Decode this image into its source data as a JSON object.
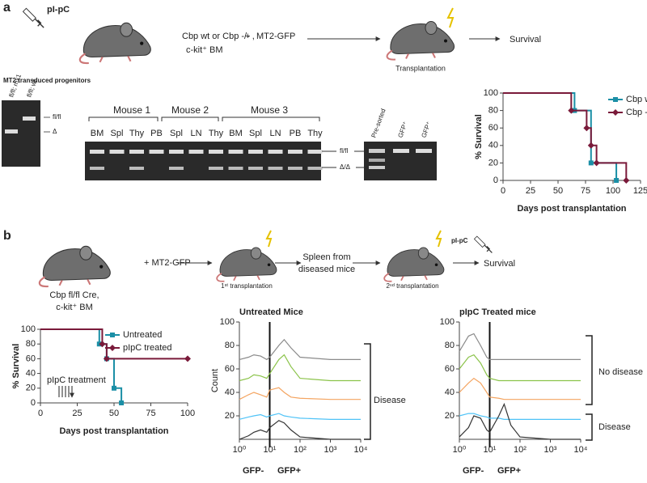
{
  "panel_a": {
    "label": "a",
    "syringe_label": "pI-pC",
    "donor_line1": "Cbp wt or Cbp -/- ,",
    "donor_line2": "c-kit⁺ BM",
    "plus": "+",
    "vector": "MT2-GFP",
    "recipient": "Transplantation",
    "outcome": "Survival",
    "gel_left": {
      "title": "MT2 transduced progenitors",
      "lanes": [
        "fl/fl; mx1",
        "fl/fl; wt"
      ],
      "bands": [
        "fl/fl",
        "Δ"
      ]
    },
    "gel_middle": {
      "groups": [
        "Mouse 1",
        "Mouse 2",
        "Mouse 3"
      ],
      "lanes": [
        "BM",
        "Spl",
        "Thy",
        "PB",
        "Spl",
        "LN",
        "Thy",
        "BM",
        "Spl",
        "LN",
        "PB",
        "Thy"
      ],
      "bands": [
        "fl/fl",
        "Δ/Δ"
      ]
    },
    "gel_right": {
      "lanes": [
        "Pre-sorted",
        "GFP⁺",
        "GFP⁺"
      ]
    }
  },
  "panel_b": {
    "label": "b",
    "donor_line1": "Cbp fl/fl Cre,",
    "donor_line2": "c-kit⁺ BM",
    "vector": "+ MT2-GFP",
    "first": "1ˢᵗ transplantation",
    "intermediate_line1": "Spleen from",
    "intermediate_line2": "diseased mice",
    "second": "2ⁿᵈ transplantation",
    "syringe_label": "pI-pC",
    "outcome": "Survival"
  },
  "chart_data": [
    {
      "type": "line",
      "step": true,
      "xlabel": "Days post transplantation",
      "ylabel": "% Survival",
      "xlim": [
        0,
        125
      ],
      "ylim": [
        0,
        100
      ],
      "xticks": [
        0,
        25,
        50,
        75,
        100,
        125
      ],
      "yticks": [
        0,
        20,
        40,
        60,
        80,
        100
      ],
      "legend": "upper right",
      "series": [
        {
          "name": "Cbp wt",
          "color": "#1b8fa6",
          "marker": "square",
          "x": [
            0,
            65,
            80,
            103
          ],
          "values": [
            100,
            80,
            20,
            0
          ]
        },
        {
          "name": "Cbp -/-",
          "color": "#7a1a3a",
          "marker": "diamond",
          "x": [
            0,
            62,
            76,
            80,
            85,
            112
          ],
          "values": [
            100,
            80,
            60,
            40,
            20,
            0
          ]
        }
      ]
    },
    {
      "type": "line",
      "step": true,
      "xlabel": "Days post transplantation",
      "ylabel": "% Survival",
      "xlim": [
        0,
        100
      ],
      "ylim": [
        0,
        100
      ],
      "xticks": [
        0,
        25,
        50,
        75,
        100
      ],
      "yticks": [
        0,
        20,
        40,
        60,
        80,
        100
      ],
      "legend": "upper right",
      "annotations": [
        "pIpC treatment"
      ],
      "series": [
        {
          "name": "Untreated",
          "color": "#1b8fa6",
          "marker": "square",
          "x": [
            0,
            40,
            45,
            50,
            55
          ],
          "values": [
            100,
            80,
            60,
            20,
            0
          ]
        },
        {
          "name": "pIpC treated",
          "color": "#7a1a3a",
          "marker": "diamond",
          "x": [
            0,
            42,
            45,
            100
          ],
          "values": [
            100,
            80,
            60,
            60
          ]
        }
      ]
    },
    {
      "type": "line",
      "title": "Untreated Mice",
      "ylabel": "Count",
      "xscale": "log",
      "gate": 10,
      "xlim": [
        1,
        10000
      ],
      "ylim": [
        0,
        100
      ],
      "xticks": [
        {
          "value": 1,
          "label": "10⁰"
        },
        {
          "value": 10,
          "label": "10¹"
        },
        {
          "value": 100,
          "label": "10²"
        },
        {
          "value": 1000,
          "label": "10³"
        },
        {
          "value": 10000,
          "label": "10⁴"
        }
      ],
      "yticks": [
        20,
        40,
        60,
        80,
        100
      ],
      "annotations": [
        "GFP-",
        "GFP+",
        "Disease"
      ],
      "x": [
        1,
        2,
        3,
        5,
        8,
        10,
        20,
        30,
        50,
        100,
        1000,
        10000
      ],
      "series": [
        {
          "color": "#8a8a8a",
          "values": [
            68,
            70,
            72,
            71,
            68,
            70,
            80,
            85,
            78,
            70,
            68,
            68
          ]
        },
        {
          "color": "#8bc34a",
          "values": [
            50,
            52,
            55,
            54,
            52,
            56,
            68,
            72,
            62,
            52,
            50,
            50
          ]
        },
        {
          "color": "#f4a460",
          "values": [
            34,
            38,
            40,
            38,
            36,
            42,
            44,
            40,
            36,
            35,
            34,
            34
          ]
        },
        {
          "color": "#4fc3f7",
          "values": [
            17,
            19,
            20,
            21,
            19,
            20,
            22,
            20,
            19,
            18,
            17,
            17
          ]
        },
        {
          "color": "#333333",
          "values": [
            0,
            3,
            6,
            8,
            6,
            10,
            16,
            14,
            8,
            2,
            0,
            0
          ]
        }
      ]
    },
    {
      "type": "line",
      "title": "pIpC Treated mice",
      "xscale": "log",
      "gate": 10,
      "xlim": [
        1,
        10000
      ],
      "ylim": [
        0,
        100
      ],
      "xticks": [
        {
          "value": 1,
          "label": "10⁰"
        },
        {
          "value": 10,
          "label": "10¹"
        },
        {
          "value": 100,
          "label": "10²"
        },
        {
          "value": 1000,
          "label": "10³"
        },
        {
          "value": 10000,
          "label": "10⁴"
        }
      ],
      "yticks": [
        20,
        40,
        60,
        80,
        100
      ],
      "annotations": [
        "GFP-",
        "GFP+",
        "No disease",
        "Disease"
      ],
      "x": [
        1,
        2,
        3,
        5,
        8,
        10,
        20,
        30,
        50,
        100,
        1000,
        10000
      ],
      "series": [
        {
          "color": "#8a8a8a",
          "values": [
            75,
            88,
            90,
            80,
            70,
            68,
            68,
            68,
            68,
            68,
            68,
            68
          ]
        },
        {
          "color": "#8bc34a",
          "values": [
            60,
            70,
            72,
            65,
            55,
            52,
            50,
            50,
            50,
            50,
            50,
            50
          ]
        },
        {
          "color": "#f4a460",
          "values": [
            40,
            48,
            52,
            48,
            40,
            36,
            35,
            34,
            34,
            34,
            34,
            34
          ]
        },
        {
          "color": "#4fc3f7",
          "values": [
            20,
            22,
            22,
            20,
            19,
            18,
            18,
            17,
            17,
            17,
            17,
            17
          ]
        },
        {
          "color": "#333333",
          "values": [
            2,
            10,
            20,
            18,
            8,
            6,
            20,
            30,
            12,
            2,
            0,
            0
          ]
        }
      ]
    }
  ]
}
